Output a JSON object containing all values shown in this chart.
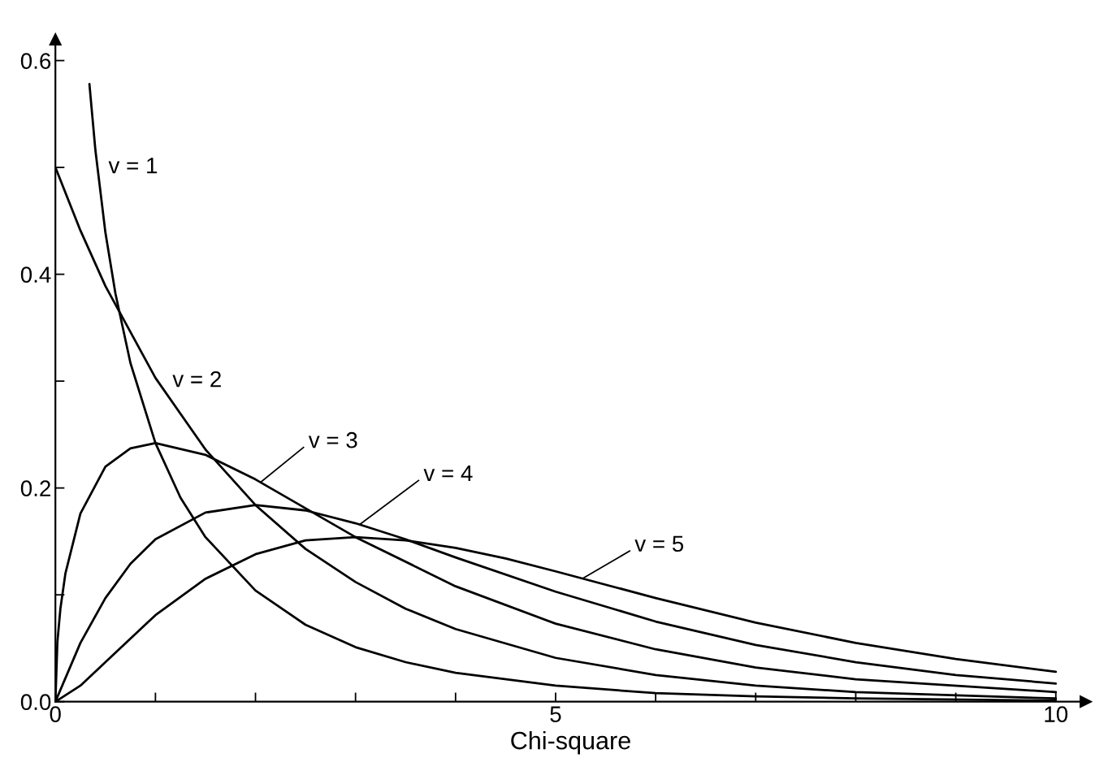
{
  "chart_data": {
    "type": "line",
    "xlabel": "Chi-square",
    "xlim": [
      0,
      10.3
    ],
    "ylim": [
      0,
      0.62
    ],
    "xticks": [
      0,
      {
        "value": 1,
        "label": null
      },
      {
        "value": 2,
        "label": null
      },
      {
        "value": 3,
        "label": null
      },
      {
        "value": 4,
        "label": null
      },
      5,
      {
        "value": 6,
        "label": null
      },
      {
        "value": 7,
        "label": null
      },
      {
        "value": 8,
        "label": null
      },
      {
        "value": 9,
        "label": null
      },
      10
    ],
    "yticks": [
      {
        "value": 0,
        "label": "0.0"
      },
      {
        "value": 0.1,
        "label": null
      },
      {
        "value": 0.2,
        "label": "0.2"
      },
      {
        "value": 0.3,
        "label": null
      },
      {
        "value": 0.4,
        "label": "0.4"
      },
      {
        "value": 0.5,
        "label": null
      },
      {
        "value": 0.6,
        "label": "0.6"
      }
    ],
    "grid": false,
    "legend": false,
    "marker": "none",
    "line_style": "solid",
    "series": [
      {
        "name": "v = 1",
        "color": "#000000",
        "x": [
          0.34,
          0.4,
          0.5,
          0.6,
          0.75,
          1,
          1.25,
          1.5,
          2,
          2.5,
          3,
          3.5,
          4,
          5,
          6,
          7,
          8,
          10
        ],
        "values": [
          0.578,
          0.516,
          0.439,
          0.382,
          0.317,
          0.242,
          0.191,
          0.154,
          0.104,
          0.072,
          0.051,
          0.037,
          0.027,
          0.015,
          0.008,
          0.005,
          0.003,
          0.001
        ]
      },
      {
        "name": "v = 2",
        "color": "#000000",
        "x": [
          0,
          0.25,
          0.5,
          1,
          1.5,
          2,
          2.5,
          3,
          3.5,
          4,
          5,
          6,
          7,
          8,
          10
        ],
        "values": [
          0.5,
          0.441,
          0.389,
          0.303,
          0.236,
          0.184,
          0.143,
          0.112,
          0.087,
          0.068,
          0.041,
          0.025,
          0.015,
          0.009,
          0.003
        ]
      },
      {
        "name": "v = 3",
        "color": "#000000",
        "x": [
          0,
          0.02,
          0.05,
          0.1,
          0.25,
          0.5,
          0.75,
          1,
          1.5,
          2,
          2.5,
          3,
          4,
          5,
          6,
          7,
          8,
          10
        ],
        "values": [
          0,
          0.056,
          0.087,
          0.12,
          0.176,
          0.22,
          0.237,
          0.242,
          0.231,
          0.208,
          0.181,
          0.154,
          0.108,
          0.073,
          0.049,
          0.032,
          0.021,
          0.009
        ]
      },
      {
        "name": "v = 4",
        "color": "#000000",
        "x": [
          0,
          0.25,
          0.5,
          0.75,
          1,
          1.5,
          2,
          2.5,
          3,
          3.5,
          4,
          5,
          6,
          7,
          8,
          9,
          10
        ],
        "values": [
          0,
          0.055,
          0.097,
          0.129,
          0.152,
          0.177,
          0.184,
          0.179,
          0.167,
          0.152,
          0.135,
          0.103,
          0.075,
          0.053,
          0.037,
          0.025,
          0.017
        ]
      },
      {
        "name": "v = 5",
        "color": "#000000",
        "x": [
          0,
          0.25,
          0.5,
          1,
          1.5,
          2,
          2.5,
          3,
          3.5,
          4,
          4.5,
          5,
          6,
          7,
          8,
          9,
          10
        ],
        "values": [
          0,
          0.015,
          0.037,
          0.081,
          0.115,
          0.138,
          0.151,
          0.154,
          0.151,
          0.144,
          0.134,
          0.122,
          0.097,
          0.074,
          0.055,
          0.04,
          0.028
        ]
      }
    ]
  }
}
